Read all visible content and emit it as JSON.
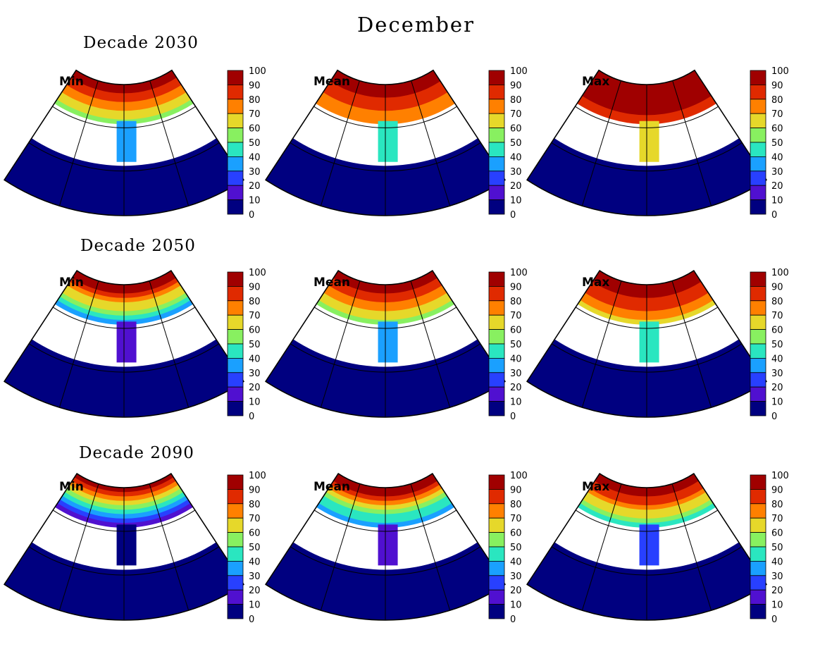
{
  "figure": {
    "title": "December",
    "rows": [
      {
        "decade_label": "Decade 2030",
        "panels": [
          {
            "label": "Min",
            "ice_extent": 0.62
          },
          {
            "label": "Mean",
            "ice_extent": 0.76
          },
          {
            "label": "Max",
            "ice_extent": 0.9
          }
        ]
      },
      {
        "decade_label": "Decade 2050",
        "panels": [
          {
            "label": "Min",
            "ice_extent": 0.5
          },
          {
            "label": "Mean",
            "ice_extent": 0.66
          },
          {
            "label": "Max",
            "ice_extent": 0.74
          }
        ]
      },
      {
        "decade_label": "Decade 2090",
        "panels": [
          {
            "label": "Min",
            "ice_extent": 0.3
          },
          {
            "label": "Mean",
            "ice_extent": 0.44
          },
          {
            "label": "Max",
            "ice_extent": 0.56
          }
        ]
      }
    ],
    "colorbar": {
      "ticks": [
        "100",
        "90",
        "80",
        "70",
        "60",
        "50",
        "40",
        "30",
        "20",
        "10",
        "0"
      ],
      "colors": [
        "#a00000",
        "#e02a00",
        "#ff8000",
        "#e6d82a",
        "#88f060",
        "#2ae6c0",
        "#1aa0ff",
        "#2840ff",
        "#5010d0",
        "#000080"
      ]
    },
    "style": {
      "ocean_color": "#000080",
      "land_color": "#ffffff",
      "ice_high_color": "#a00000"
    }
  }
}
